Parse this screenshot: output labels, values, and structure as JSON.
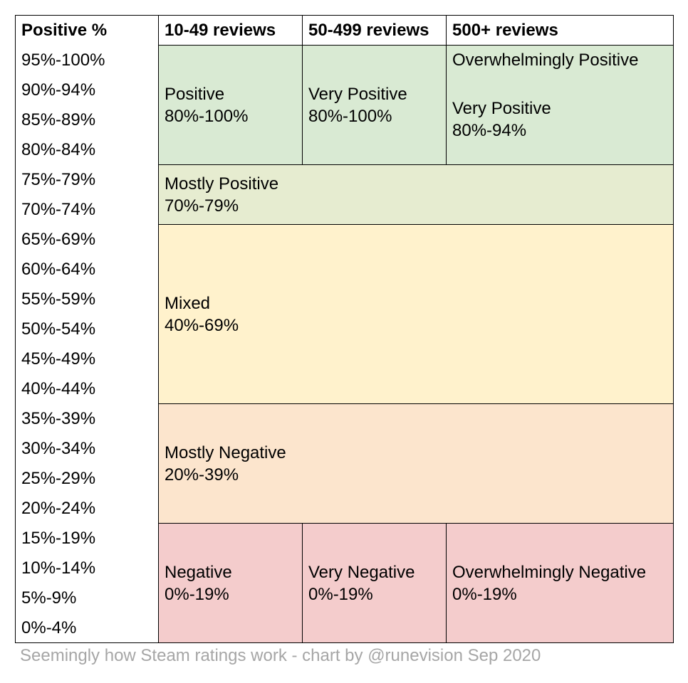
{
  "table": {
    "header": [
      "Positive %",
      "10-49 reviews",
      "50-499 reviews",
      "500+ reviews"
    ],
    "row_labels": [
      "95%-100%",
      "90%-94%",
      "85%-89%",
      "80%-84%",
      "75%-79%",
      "70%-74%",
      "65%-69%",
      "60%-64%",
      "55%-59%",
      "50%-54%",
      "45%-49%",
      "40%-44%",
      "35%-39%",
      "30%-34%",
      "25%-29%",
      "20%-24%",
      "15%-19%",
      "10%-14%",
      "5%-9%",
      "0%-4%"
    ],
    "blocks": [
      {
        "name": "Positive",
        "range": "80%-100%"
      },
      {
        "name": "Very Positive",
        "range": "80%-100%"
      },
      {
        "name": "Overwhelmingly Positive"
      },
      {
        "name": "Very Positive",
        "range": "80%-94%"
      },
      {
        "name": "Mostly Positive",
        "range": "70%-79%"
      },
      {
        "name": "Mixed",
        "range": "40%-69%"
      },
      {
        "name": "Mostly Negative",
        "range": "20%-39%"
      },
      {
        "name": "Negative",
        "range": "0%-19%"
      },
      {
        "name": "Very Negative",
        "range": "0%-19%"
      },
      {
        "name": "Overwhelmingly Negative",
        "range": "0%-19%"
      }
    ]
  },
  "caption": "Seemingly how Steam ratings work - chart by @runevision Sep 2020"
}
